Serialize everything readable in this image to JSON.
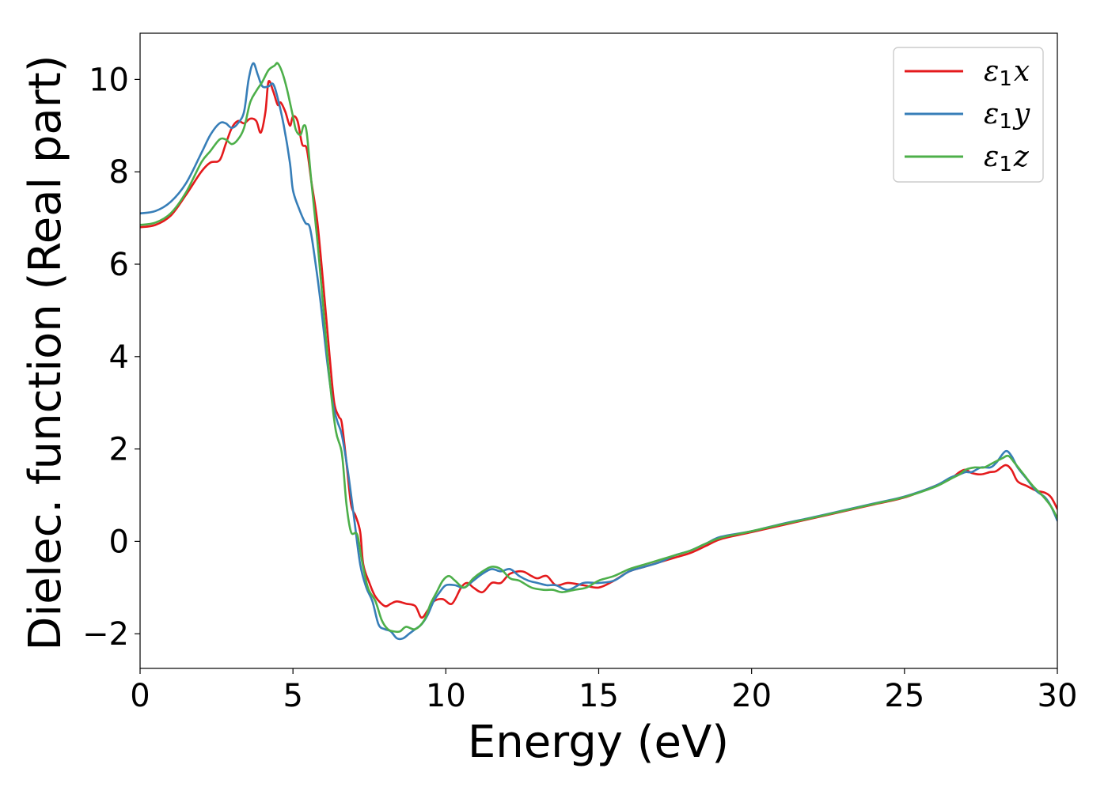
{
  "chart_data": {
    "type": "line",
    "title": "",
    "xlabel": "Energy (eV)",
    "ylabel": "Dielec. function (Real part)",
    "xlim": [
      0,
      30
    ],
    "ylim": [
      -2.75,
      11.0
    ],
    "xticks": [
      0,
      5,
      10,
      15,
      20,
      25,
      30
    ],
    "yticks": [
      -2,
      0,
      2,
      4,
      6,
      8,
      10
    ],
    "ytick_labels": [
      "−2",
      "0",
      "2",
      "4",
      "6",
      "8",
      "10"
    ],
    "grid": false,
    "legend_position": "top-right",
    "series": [
      {
        "name": "ε₁x",
        "legend_base": "ε",
        "legend_sub": "1",
        "legend_tail": "x",
        "color": "#e41a1c",
        "points": [
          [
            0,
            6.8
          ],
          [
            0.5,
            6.85
          ],
          [
            1.0,
            7.05
          ],
          [
            1.5,
            7.5
          ],
          [
            2.0,
            8.0
          ],
          [
            2.3,
            8.2
          ],
          [
            2.6,
            8.25
          ],
          [
            2.8,
            8.6
          ],
          [
            3.0,
            8.95
          ],
          [
            3.2,
            9.1
          ],
          [
            3.4,
            9.05
          ],
          [
            3.6,
            9.15
          ],
          [
            3.8,
            9.1
          ],
          [
            3.95,
            8.85
          ],
          [
            4.1,
            9.3
          ],
          [
            4.2,
            9.95
          ],
          [
            4.35,
            9.75
          ],
          [
            4.5,
            9.45
          ],
          [
            4.6,
            9.5
          ],
          [
            4.75,
            9.3
          ],
          [
            4.9,
            9.0
          ],
          [
            5.0,
            9.2
          ],
          [
            5.15,
            9.1
          ],
          [
            5.3,
            8.6
          ],
          [
            5.45,
            8.5
          ],
          [
            5.6,
            7.8
          ],
          [
            5.8,
            6.9
          ],
          [
            6.0,
            5.5
          ],
          [
            6.2,
            4.0
          ],
          [
            6.35,
            3.0
          ],
          [
            6.5,
            2.7
          ],
          [
            6.6,
            2.55
          ],
          [
            6.75,
            1.7
          ],
          [
            6.9,
            0.8
          ],
          [
            7.05,
            0.55
          ],
          [
            7.2,
            0.2
          ],
          [
            7.3,
            -0.5
          ],
          [
            7.5,
            -0.9
          ],
          [
            7.7,
            -1.2
          ],
          [
            8.0,
            -1.4
          ],
          [
            8.2,
            -1.35
          ],
          [
            8.4,
            -1.3
          ],
          [
            8.7,
            -1.35
          ],
          [
            9.0,
            -1.4
          ],
          [
            9.2,
            -1.65
          ],
          [
            9.4,
            -1.5
          ],
          [
            9.6,
            -1.3
          ],
          [
            9.9,
            -1.25
          ],
          [
            10.2,
            -1.35
          ],
          [
            10.5,
            -1.0
          ],
          [
            10.7,
            -0.9
          ],
          [
            10.9,
            -1.0
          ],
          [
            11.2,
            -1.1
          ],
          [
            11.5,
            -0.9
          ],
          [
            11.8,
            -0.9
          ],
          [
            12.1,
            -0.7
          ],
          [
            12.5,
            -0.65
          ],
          [
            12.8,
            -0.75
          ],
          [
            13.0,
            -0.8
          ],
          [
            13.3,
            -0.75
          ],
          [
            13.6,
            -0.95
          ],
          [
            14.0,
            -0.9
          ],
          [
            14.5,
            -0.95
          ],
          [
            15.0,
            -1.0
          ],
          [
            15.5,
            -0.85
          ],
          [
            16.0,
            -0.65
          ],
          [
            16.5,
            -0.55
          ],
          [
            17.0,
            -0.45
          ],
          [
            17.5,
            -0.35
          ],
          [
            18.0,
            -0.25
          ],
          [
            18.5,
            -0.1
          ],
          [
            19.0,
            0.05
          ],
          [
            20.0,
            0.2
          ],
          [
            21.0,
            0.35
          ],
          [
            22.0,
            0.5
          ],
          [
            23.0,
            0.65
          ],
          [
            24.0,
            0.8
          ],
          [
            25.0,
            0.95
          ],
          [
            26.0,
            1.2
          ],
          [
            26.5,
            1.35
          ],
          [
            26.8,
            1.5
          ],
          [
            27.0,
            1.55
          ],
          [
            27.2,
            1.48
          ],
          [
            27.5,
            1.45
          ],
          [
            27.8,
            1.5
          ],
          [
            28.0,
            1.52
          ],
          [
            28.3,
            1.65
          ],
          [
            28.5,
            1.55
          ],
          [
            28.7,
            1.3
          ],
          [
            29.0,
            1.2
          ],
          [
            29.3,
            1.1
          ],
          [
            29.6,
            1.05
          ],
          [
            29.8,
            0.95
          ],
          [
            30.0,
            0.7
          ]
        ]
      },
      {
        "name": "ε₁y",
        "legend_base": "ε",
        "legend_sub": "1",
        "legend_tail": "y",
        "color": "#377eb8",
        "points": [
          [
            0,
            7.1
          ],
          [
            0.5,
            7.15
          ],
          [
            1.0,
            7.35
          ],
          [
            1.5,
            7.75
          ],
          [
            2.0,
            8.4
          ],
          [
            2.3,
            8.8
          ],
          [
            2.6,
            9.05
          ],
          [
            2.8,
            9.05
          ],
          [
            3.0,
            8.95
          ],
          [
            3.2,
            9.05
          ],
          [
            3.4,
            9.3
          ],
          [
            3.55,
            10.0
          ],
          [
            3.7,
            10.35
          ],
          [
            3.85,
            10.1
          ],
          [
            4.0,
            9.85
          ],
          [
            4.2,
            9.85
          ],
          [
            4.35,
            9.9
          ],
          [
            4.5,
            9.6
          ],
          [
            4.7,
            9.0
          ],
          [
            4.9,
            8.2
          ],
          [
            5.0,
            7.6
          ],
          [
            5.2,
            7.2
          ],
          [
            5.4,
            6.9
          ],
          [
            5.55,
            6.8
          ],
          [
            5.7,
            6.2
          ],
          [
            5.9,
            5.2
          ],
          [
            6.1,
            4.0
          ],
          [
            6.3,
            3.0
          ],
          [
            6.45,
            2.6
          ],
          [
            6.6,
            2.3
          ],
          [
            6.8,
            1.5
          ],
          [
            7.0,
            0.5
          ],
          [
            7.2,
            -0.5
          ],
          [
            7.4,
            -1.0
          ],
          [
            7.6,
            -1.3
          ],
          [
            7.8,
            -1.8
          ],
          [
            8.0,
            -1.9
          ],
          [
            8.2,
            -1.95
          ],
          [
            8.4,
            -2.1
          ],
          [
            8.6,
            -2.1
          ],
          [
            8.8,
            -2.0
          ],
          [
            9.0,
            -1.9
          ],
          [
            9.2,
            -1.8
          ],
          [
            9.4,
            -1.6
          ],
          [
            9.6,
            -1.3
          ],
          [
            9.8,
            -1.1
          ],
          [
            10.0,
            -0.95
          ],
          [
            10.3,
            -0.95
          ],
          [
            10.6,
            -1.0
          ],
          [
            10.9,
            -0.85
          ],
          [
            11.2,
            -0.7
          ],
          [
            11.5,
            -0.6
          ],
          [
            11.8,
            -0.65
          ],
          [
            12.1,
            -0.6
          ],
          [
            12.4,
            -0.75
          ],
          [
            12.7,
            -0.85
          ],
          [
            13.0,
            -0.9
          ],
          [
            13.3,
            -0.95
          ],
          [
            13.6,
            -0.95
          ],
          [
            14.0,
            -1.05
          ],
          [
            14.5,
            -0.9
          ],
          [
            15.0,
            -0.9
          ],
          [
            15.5,
            -0.85
          ],
          [
            16.0,
            -0.65
          ],
          [
            16.5,
            -0.55
          ],
          [
            17.0,
            -0.45
          ],
          [
            17.5,
            -0.3
          ],
          [
            18.0,
            -0.2
          ],
          [
            18.5,
            -0.05
          ],
          [
            19.0,
            0.1
          ],
          [
            20.0,
            0.22
          ],
          [
            21.0,
            0.38
          ],
          [
            22.0,
            0.52
          ],
          [
            23.0,
            0.67
          ],
          [
            24.0,
            0.82
          ],
          [
            25.0,
            0.97
          ],
          [
            26.0,
            1.2
          ],
          [
            26.5,
            1.38
          ],
          [
            26.8,
            1.45
          ],
          [
            27.0,
            1.5
          ],
          [
            27.2,
            1.5
          ],
          [
            27.5,
            1.6
          ],
          [
            27.8,
            1.6
          ],
          [
            28.0,
            1.7
          ],
          [
            28.3,
            1.95
          ],
          [
            28.5,
            1.85
          ],
          [
            28.7,
            1.6
          ],
          [
            29.0,
            1.35
          ],
          [
            29.3,
            1.1
          ],
          [
            29.6,
            0.95
          ],
          [
            29.8,
            0.75
          ],
          [
            30.0,
            0.45
          ]
        ]
      },
      {
        "name": "ε₁z",
        "legend_base": "ε",
        "legend_sub": "1",
        "legend_tail": "z",
        "color": "#4daf4a",
        "points": [
          [
            0,
            6.85
          ],
          [
            0.5,
            6.9
          ],
          [
            1.0,
            7.1
          ],
          [
            1.5,
            7.55
          ],
          [
            2.0,
            8.2
          ],
          [
            2.3,
            8.45
          ],
          [
            2.6,
            8.7
          ],
          [
            2.8,
            8.7
          ],
          [
            3.0,
            8.6
          ],
          [
            3.2,
            8.7
          ],
          [
            3.4,
            8.95
          ],
          [
            3.6,
            9.5
          ],
          [
            3.8,
            9.75
          ],
          [
            4.0,
            9.95
          ],
          [
            4.2,
            10.2
          ],
          [
            4.4,
            10.3
          ],
          [
            4.5,
            10.35
          ],
          [
            4.65,
            10.15
          ],
          [
            4.8,
            9.8
          ],
          [
            5.0,
            9.2
          ],
          [
            5.1,
            8.9
          ],
          [
            5.25,
            8.8
          ],
          [
            5.35,
            9.0
          ],
          [
            5.45,
            8.85
          ],
          [
            5.6,
            7.8
          ],
          [
            5.8,
            6.5
          ],
          [
            6.0,
            5.0
          ],
          [
            6.2,
            3.5
          ],
          [
            6.4,
            2.4
          ],
          [
            6.6,
            1.9
          ],
          [
            6.75,
            0.8
          ],
          [
            6.9,
            0.2
          ],
          [
            7.1,
            0.15
          ],
          [
            7.25,
            -0.4
          ],
          [
            7.45,
            -1.0
          ],
          [
            7.7,
            -1.3
          ],
          [
            7.9,
            -1.7
          ],
          [
            8.1,
            -1.9
          ],
          [
            8.3,
            -1.95
          ],
          [
            8.5,
            -1.95
          ],
          [
            8.7,
            -1.85
          ],
          [
            9.0,
            -1.9
          ],
          [
            9.3,
            -1.7
          ],
          [
            9.5,
            -1.35
          ],
          [
            9.7,
            -1.1
          ],
          [
            9.9,
            -0.85
          ],
          [
            10.1,
            -0.75
          ],
          [
            10.3,
            -0.85
          ],
          [
            10.6,
            -1.0
          ],
          [
            10.9,
            -0.8
          ],
          [
            11.2,
            -0.65
          ],
          [
            11.5,
            -0.55
          ],
          [
            11.8,
            -0.6
          ],
          [
            12.1,
            -0.8
          ],
          [
            12.4,
            -0.85
          ],
          [
            12.8,
            -1.0
          ],
          [
            13.2,
            -1.05
          ],
          [
            13.5,
            -1.05
          ],
          [
            13.8,
            -1.1
          ],
          [
            14.2,
            -1.05
          ],
          [
            14.6,
            -1.0
          ],
          [
            15.0,
            -0.85
          ],
          [
            15.5,
            -0.75
          ],
          [
            16.0,
            -0.6
          ],
          [
            16.5,
            -0.5
          ],
          [
            17.0,
            -0.4
          ],
          [
            17.5,
            -0.3
          ],
          [
            18.0,
            -0.2
          ],
          [
            18.5,
            -0.05
          ],
          [
            19.0,
            0.08
          ],
          [
            20.0,
            0.22
          ],
          [
            21.0,
            0.37
          ],
          [
            22.0,
            0.51
          ],
          [
            23.0,
            0.66
          ],
          [
            24.0,
            0.81
          ],
          [
            25.0,
            0.96
          ],
          [
            26.0,
            1.18
          ],
          [
            26.5,
            1.35
          ],
          [
            26.8,
            1.45
          ],
          [
            27.0,
            1.55
          ],
          [
            27.3,
            1.6
          ],
          [
            27.6,
            1.6
          ],
          [
            27.9,
            1.7
          ],
          [
            28.2,
            1.8
          ],
          [
            28.4,
            1.85
          ],
          [
            28.6,
            1.7
          ],
          [
            28.9,
            1.45
          ],
          [
            29.2,
            1.2
          ],
          [
            29.5,
            1.0
          ],
          [
            29.8,
            0.75
          ],
          [
            30.0,
            0.5
          ]
        ]
      }
    ]
  }
}
